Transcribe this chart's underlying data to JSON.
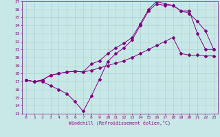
{
  "xlabel": "Windchill (Refroidissement éolien,°C)",
  "bg_color": "#c8e8e8",
  "line_color": "#800080",
  "grid_color": "#aacccc",
  "xlim": [
    -0.5,
    23.5
  ],
  "ylim": [
    13,
    27
  ],
  "xticks": [
    0,
    1,
    2,
    3,
    4,
    5,
    6,
    7,
    8,
    9,
    10,
    11,
    12,
    13,
    14,
    15,
    16,
    17,
    18,
    19,
    20,
    21,
    22,
    23
  ],
  "yticks": [
    13,
    14,
    15,
    16,
    17,
    18,
    19,
    20,
    21,
    22,
    23,
    24,
    25,
    26,
    27
  ],
  "line1_x": [
    0,
    1,
    2,
    3,
    4,
    5,
    6,
    7,
    8,
    9,
    10,
    11,
    12,
    13,
    14,
    15,
    16,
    17,
    18,
    19,
    20,
    21,
    22,
    23
  ],
  "line1_y": [
    17.2,
    17.0,
    17.0,
    16.5,
    16.0,
    15.5,
    14.5,
    13.3,
    15.2,
    17.3,
    19.5,
    20.5,
    21.2,
    22.2,
    24.0,
    25.8,
    26.7,
    26.5,
    26.5,
    25.8,
    25.8,
    23.0,
    21.0,
    21.0
  ],
  "line2_x": [
    0,
    1,
    2,
    3,
    4,
    5,
    6,
    7,
    8,
    9,
    10,
    11,
    12,
    13,
    14,
    15,
    16,
    17,
    18,
    19,
    20,
    21,
    22,
    23
  ],
  "line2_y": [
    17.2,
    17.0,
    17.2,
    17.8,
    18.0,
    18.2,
    18.3,
    18.2,
    18.4,
    18.7,
    19.0,
    19.3,
    19.6,
    20.0,
    20.5,
    21.0,
    21.5,
    22.0,
    22.5,
    20.5,
    20.3,
    20.3,
    20.2,
    20.2
  ],
  "line3_x": [
    0,
    1,
    2,
    3,
    4,
    5,
    6,
    7,
    8,
    9,
    10,
    11,
    12,
    13,
    14,
    15,
    16,
    17,
    18,
    19,
    20,
    21,
    22,
    23
  ],
  "line3_y": [
    17.2,
    17.0,
    17.2,
    17.8,
    18.0,
    18.2,
    18.3,
    18.2,
    19.2,
    19.6,
    20.5,
    21.2,
    21.8,
    22.5,
    24.2,
    26.0,
    27.0,
    26.7,
    26.5,
    25.8,
    25.5,
    24.5,
    23.3,
    21.0
  ]
}
